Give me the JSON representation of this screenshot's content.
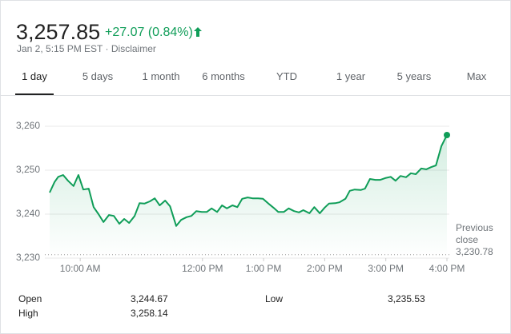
{
  "header": {
    "price": "3,257.85",
    "change": "+27.07 (0.84%)",
    "timestamp": "Jan 2, 5:15 PM EST",
    "separator": "·",
    "disclaimer": "Disclaimer"
  },
  "tabs": [
    "1 day",
    "5 days",
    "1 month",
    "6 months",
    "YTD",
    "1 year",
    "5 years",
    "Max"
  ],
  "chart_data": {
    "type": "line",
    "color": "#0f9d58",
    "x": [
      9.5,
      9.58,
      9.64,
      9.72,
      9.8,
      9.89,
      9.97,
      10.05,
      10.14,
      10.22,
      10.3,
      10.38,
      10.47,
      10.55,
      10.64,
      10.72,
      10.8,
      10.89,
      10.97,
      11.05,
      11.14,
      11.22,
      11.3,
      11.39,
      11.47,
      11.57,
      11.65,
      11.74,
      11.82,
      11.9,
      11.99,
      12.07,
      12.15,
      12.24,
      12.32,
      12.4,
      12.49,
      12.57,
      12.65,
      12.74,
      12.82,
      12.91,
      12.99,
      13.08,
      13.16,
      13.24,
      13.33,
      13.41,
      13.5,
      13.58,
      13.65,
      13.75,
      13.83,
      13.92,
      14.0,
      14.07,
      14.17,
      14.24,
      14.34,
      14.41,
      14.49,
      14.59,
      14.66,
      14.74,
      14.83,
      14.91,
      14.99,
      15.08,
      15.16,
      15.24,
      15.33,
      15.41,
      15.49,
      15.58,
      15.66,
      15.74,
      15.82,
      15.91,
      16.0
    ],
    "values": [
      3244.9,
      3247.3,
      3248.5,
      3248.9,
      3247.6,
      3246.4,
      3248.9,
      3245.6,
      3245.8,
      3241.6,
      3240,
      3238.2,
      3239.8,
      3239.6,
      3237.8,
      3238.9,
      3238,
      3239.6,
      3242.5,
      3242.4,
      3242.9,
      3243.6,
      3242,
      3243.1,
      3241.8,
      3237.3,
      3238.7,
      3239.3,
      3239.6,
      3240.7,
      3240.5,
      3240.5,
      3241.3,
      3240.5,
      3242,
      3241.3,
      3242,
      3241.6,
      3243.5,
      3243.8,
      3243.6,
      3243.6,
      3243.5,
      3242.4,
      3241.5,
      3240.5,
      3240.5,
      3241.3,
      3240.7,
      3240.4,
      3240.9,
      3240.2,
      3241.6,
      3240.2,
      3241.5,
      3242.4,
      3242.5,
      3242.7,
      3243.5,
      3245.3,
      3245.6,
      3245.5,
      3245.8,
      3248,
      3247.8,
      3247.8,
      3248.2,
      3248.5,
      3247.6,
      3248.7,
      3248.4,
      3249.3,
      3249.1,
      3250.4,
      3250.2,
      3250.7,
      3251.1,
      3255.5,
      3258
    ],
    "xlim": [
      9.5,
      16
    ],
    "xticks": [
      {
        "value": 10,
        "label": "10:00 AM"
      },
      {
        "value": 12,
        "label": "12:00 PM"
      },
      {
        "value": 13,
        "label": "1:00 PM"
      },
      {
        "value": 14,
        "label": "2:00 PM"
      },
      {
        "value": 15,
        "label": "3:00 PM"
      },
      {
        "value": 16,
        "label": "4:00 PM"
      }
    ],
    "ylim": [
      3230,
      3262
    ],
    "yticks": [
      {
        "value": 3230,
        "label": "3,230"
      },
      {
        "value": 3240,
        "label": "3,240"
      },
      {
        "value": 3250,
        "label": "3,250"
      },
      {
        "value": 3260,
        "label": "3,260"
      }
    ],
    "grid": true,
    "previous_close": {
      "label": "Previous close",
      "value": 3230.78,
      "value_label": "3,230.78"
    }
  },
  "stats": [
    {
      "label": "Open",
      "value": "3,244.67"
    },
    {
      "label": "High",
      "value": "3,258.14"
    },
    {
      "label": "Low",
      "value": "3,235.53"
    }
  ]
}
